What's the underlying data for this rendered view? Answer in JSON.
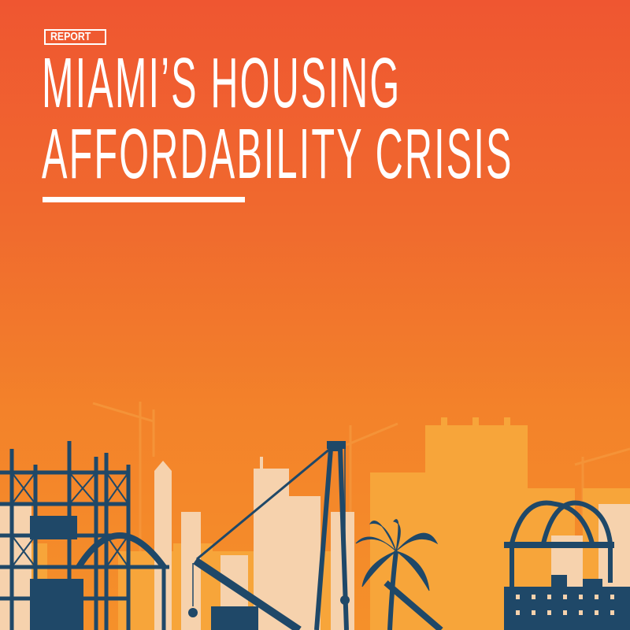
{
  "cover": {
    "badge": "REPORT",
    "title_line1": "MIAMI’S HOUSING",
    "title_line2": "AFFORDABILITY CRISIS"
  },
  "colors": {
    "background_top": "#ef5631",
    "background_bottom": "#f5902a",
    "text": "#ffffff",
    "silhouette_navy": "#1f4868",
    "building_light": "#f6d2ad",
    "building_mid": "#f7a53a"
  },
  "illustration": {
    "icons": [
      "construction-crane-icon",
      "scaffolding-icon",
      "skyline-icon",
      "palm-tree-icon",
      "truss-arch-icon",
      "apartment-building-icon"
    ]
  }
}
